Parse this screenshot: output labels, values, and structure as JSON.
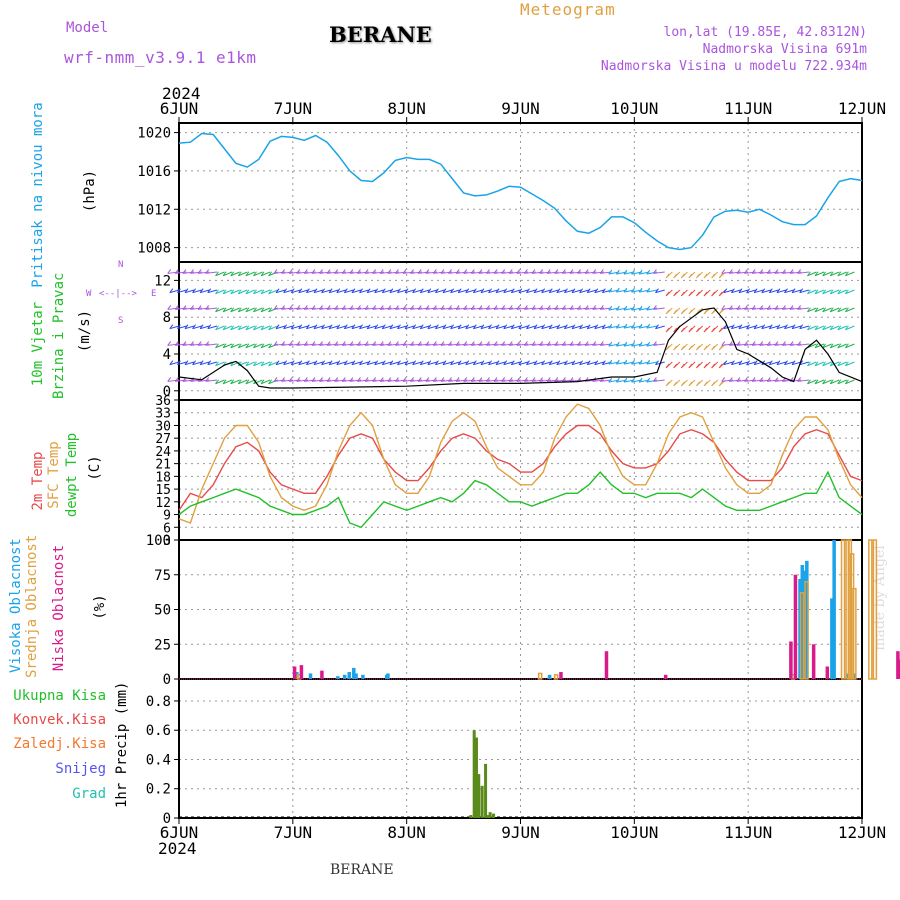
{
  "header": {
    "model_label": "Model",
    "model_name": "wrf-nmm_v3.9.1 e1km",
    "location": "BERANE",
    "product": "Meteogram",
    "coords": "lon,lat (19.85E, 42.8312N)",
    "elevation": "Nadmorska Visina 691m",
    "model_elevation": "Nadmorska Visina u modelu 722.934m",
    "year_top": "2024",
    "year_bottom": "2024",
    "footer_location": "BERANE",
    "credit": "made by Angel"
  },
  "colors": {
    "pressure": "#1aa3e8",
    "temp2m": "#e84a4a",
    "sfc_temp": "#e0a040",
    "dewpt": "#22c02a",
    "high_cloud": "#1aa3e8",
    "mid_cloud": "#e0a040",
    "low_cloud": "#d81a8a",
    "total_precip": "#5a8a1a",
    "wind_label": "#22c02a",
    "wind_dir": "#aa55dd"
  },
  "x_axis": {
    "ticks": [
      "6JUN",
      "7JUN",
      "8JUN",
      "9JUN",
      "10JUN",
      "11JUN",
      "12JUN"
    ]
  },
  "panels": {
    "pressure": {
      "label": "Pritisak na nivou mora",
      "unit": "(hPa)"
    },
    "wind": {
      "label1": "10m Vjetar",
      "label2": "Brzina i Pravac",
      "unit": "(m/s)",
      "dir_n": "N",
      "dir_s": "S",
      "dir_w": "W",
      "dir_e": "E",
      "dir_axis": "<--|-->"
    },
    "temp": {
      "label1": "2m Temp",
      "label2": "SFC Temp",
      "label3": "dewpt Temp",
      "unit": "(C)"
    },
    "cloud": {
      "label1": "Visoka Oblacnost",
      "label2": "Srednja Oblacnost",
      "label3": "Niska Oblacnost",
      "unit": "(%)"
    },
    "precip": {
      "legend": [
        "Ukupna Kisa",
        "Konvek.Kisa",
        "Zaledj.Kisa",
        "Snijeg",
        "Grad"
      ],
      "unit": "1hr Precip (mm)"
    }
  },
  "chart_data": [
    {
      "type": "line",
      "series": [
        {
          "name": "Pritisak na nivou mora",
          "x": [
            0,
            0.1,
            0.2,
            0.3,
            0.4,
            0.5,
            0.6,
            0.7,
            0.8,
            0.9,
            1.0,
            1.1,
            1.2,
            1.3,
            1.4,
            1.5,
            1.6,
            1.7,
            1.8,
            1.9,
            2.0,
            2.1,
            2.2,
            2.3,
            2.4,
            2.5,
            2.6,
            2.7,
            2.8,
            2.9,
            3.0,
            3.1,
            3.2,
            3.3,
            3.4,
            3.5,
            3.6,
            3.7,
            3.8,
            3.9,
            4.0,
            4.1,
            4.2,
            4.3,
            4.4,
            4.5,
            4.6,
            4.7,
            4.8,
            4.9,
            5.0,
            5.1,
            5.2,
            5.3,
            5.4,
            5.5,
            5.6,
            5.7,
            5.8,
            5.9,
            6.0
          ],
          "values": [
            1018.9,
            1019.0,
            1019.9,
            1019.8,
            1018.3,
            1016.8,
            1016.4,
            1017.2,
            1019.1,
            1019.6,
            1019.5,
            1019.2,
            1019.7,
            1019.0,
            1017.6,
            1016.0,
            1015.0,
            1014.9,
            1015.8,
            1017.1,
            1017.4,
            1017.2,
            1017.2,
            1016.7,
            1015.2,
            1013.7,
            1013.4,
            1013.5,
            1013.9,
            1014.4,
            1014.3,
            1013.6,
            1012.9,
            1012.1,
            1010.8,
            1009.7,
            1009.5,
            1010.1,
            1011.2,
            1011.2,
            1010.6,
            1009.6,
            1008.7,
            1008.0,
            1007.8,
            1008.0,
            1009.3,
            1011.2,
            1011.8,
            1011.9,
            1011.7,
            1012.0,
            1011.4,
            1010.7,
            1010.4,
            1010.4,
            1011.3,
            1013.2,
            1014.9,
            1015.2,
            1015.0
          ]
        }
      ],
      "ylim": [
        1006.5,
        1021
      ],
      "yticks": [
        1008,
        1012,
        1016,
        1020
      ]
    },
    {
      "type": "line",
      "series": [
        {
          "name": "10m Vjetar",
          "x": [
            0,
            0.2,
            0.4,
            0.5,
            0.6,
            0.7,
            0.8,
            1.0,
            1.5,
            2.0,
            2.5,
            3.0,
            3.5,
            3.8,
            4.0,
            4.2,
            4.3,
            4.4,
            4.6,
            4.7,
            4.8,
            4.9,
            5.0,
            5.2,
            5.3,
            5.4,
            5.5,
            5.6,
            5.7,
            5.8,
            6.0
          ],
          "values": [
            1.5,
            1.2,
            2.8,
            3.2,
            2.2,
            0.5,
            0.3,
            0.3,
            0.4,
            0.5,
            0.8,
            0.8,
            1.0,
            1.5,
            1.5,
            2.0,
            5.5,
            7.0,
            8.8,
            9.0,
            7.5,
            4.5,
            4.0,
            2.5,
            1.5,
            1.0,
            4.5,
            5.5,
            4.0,
            2.0,
            1.0
          ]
        }
      ],
      "ylim": [
        -1,
        14
      ],
      "yticks": [
        0,
        4,
        8,
        12
      ]
    },
    {
      "type": "line",
      "x": [
        0,
        0.1,
        0.2,
        0.3,
        0.4,
        0.5,
        0.6,
        0.7,
        0.8,
        0.9,
        1.0,
        1.1,
        1.2,
        1.3,
        1.4,
        1.5,
        1.6,
        1.7,
        1.8,
        1.9,
        2.0,
        2.1,
        2.2,
        2.3,
        2.4,
        2.5,
        2.6,
        2.7,
        2.8,
        2.9,
        3.0,
        3.1,
        3.2,
        3.3,
        3.4,
        3.5,
        3.6,
        3.7,
        3.8,
        3.9,
        4.0,
        4.1,
        4.2,
        4.3,
        4.4,
        4.5,
        4.6,
        4.7,
        4.8,
        4.9,
        5.0,
        5.1,
        5.2,
        5.3,
        5.4,
        5.5,
        5.6,
        5.7,
        5.8,
        5.9,
        6.0
      ],
      "series": [
        {
          "name": "2m Temp",
          "values": [
            10,
            14,
            13,
            16,
            21,
            25,
            26,
            24,
            19,
            16,
            15,
            14,
            14,
            18,
            23,
            27,
            28,
            27,
            22,
            19,
            17,
            17,
            20,
            24,
            27,
            28,
            27,
            24,
            22,
            21,
            19,
            19,
            21,
            25,
            28,
            30,
            30,
            28,
            24,
            21,
            20,
            20,
            21,
            24,
            28,
            29,
            28,
            26,
            22,
            19,
            17,
            17,
            17,
            20,
            25,
            28,
            29,
            28,
            23,
            18,
            17
          ]
        },
        {
          "name": "SFC Temp",
          "values": [
            8,
            7,
            15,
            21,
            27,
            30,
            30,
            26,
            18,
            13,
            11,
            10,
            11,
            16,
            24,
            30,
            33,
            30,
            22,
            16,
            14,
            14,
            18,
            26,
            31,
            33,
            31,
            25,
            20,
            18,
            16,
            16,
            19,
            27,
            32,
            35,
            34,
            30,
            23,
            18,
            16,
            16,
            21,
            28,
            32,
            33,
            32,
            26,
            20,
            16,
            14,
            14,
            16,
            23,
            29,
            32,
            32,
            29,
            22,
            16,
            13
          ]
        },
        {
          "name": "dewpt Temp",
          "values": [
            9,
            11,
            12,
            13,
            14,
            15,
            14,
            13,
            11,
            10,
            9,
            9,
            10,
            11,
            13,
            7,
            6,
            9,
            12,
            11,
            10,
            11,
            12,
            13,
            12,
            14,
            17,
            16,
            14,
            12,
            12,
            11,
            12,
            13,
            14,
            14,
            16,
            19,
            16,
            14,
            14,
            13,
            14,
            14,
            14,
            13,
            15,
            13,
            11,
            10,
            10,
            10,
            11,
            12,
            13,
            14,
            14,
            19,
            13,
            11,
            9
          ]
        }
      ],
      "ylim": [
        3,
        36
      ],
      "yticks": [
        3,
        6,
        9,
        12,
        15,
        18,
        21,
        24,
        27,
        30,
        33,
        36
      ]
    },
    {
      "type": "bar",
      "series": [
        {
          "name": "Visoka Oblacnost",
          "x": [
            5.1,
            5.7,
            6.9,
            7.2,
            7.4,
            7.6,
            7.7,
            8.0,
            9.05,
            9.1,
            16.2,
            27.2,
            27.3,
            27.4,
            27.5,
            28.6,
            28.7,
            29.3,
            29.6
          ],
          "values": [
            5,
            4,
            2,
            3,
            5,
            8,
            4,
            3,
            3,
            4,
            3,
            72,
            82,
            78,
            85,
            58,
            100,
            4,
            4
          ]
        },
        {
          "name": "Srednja Oblacnost",
          "x": [
            5.2,
            15.8,
            16.5,
            26.9,
            27.3,
            27.5,
            29.1,
            29.3,
            29.4,
            29.5,
            29.6,
            30.3,
            30.5
          ],
          "values": [
            3,
            4,
            3,
            3,
            62,
            70,
            100,
            100,
            100,
            90,
            65,
            100,
            100
          ]
        },
        {
          "name": "Niska Oblacnost",
          "x": [
            5.0,
            5.3,
            6.2,
            16.7,
            18.7,
            21.3,
            26.8,
            27.0,
            27.8,
            28.4,
            31.5,
            31.6
          ],
          "values": [
            9,
            10,
            6,
            5,
            20,
            3,
            27,
            75,
            25,
            9,
            20,
            14
          ]
        }
      ],
      "ylim": [
        0,
        100
      ],
      "yticks": [
        0,
        25,
        50,
        75,
        100
      ]
    },
    {
      "type": "bar",
      "series": [
        {
          "name": "Ukupna Kisa",
          "x": [
            2.55,
            2.58,
            2.6,
            2.62,
            2.65,
            2.68,
            2.7,
            2.72,
            2.75
          ],
          "values": [
            0.02,
            0.6,
            0.55,
            0.3,
            0.22,
            0.37,
            0.02,
            0.04,
            0.03
          ]
        }
      ],
      "ylim": [
        0,
        0.95
      ],
      "yticks": [
        0,
        0.2,
        0.4,
        0.6,
        0.8
      ]
    }
  ]
}
